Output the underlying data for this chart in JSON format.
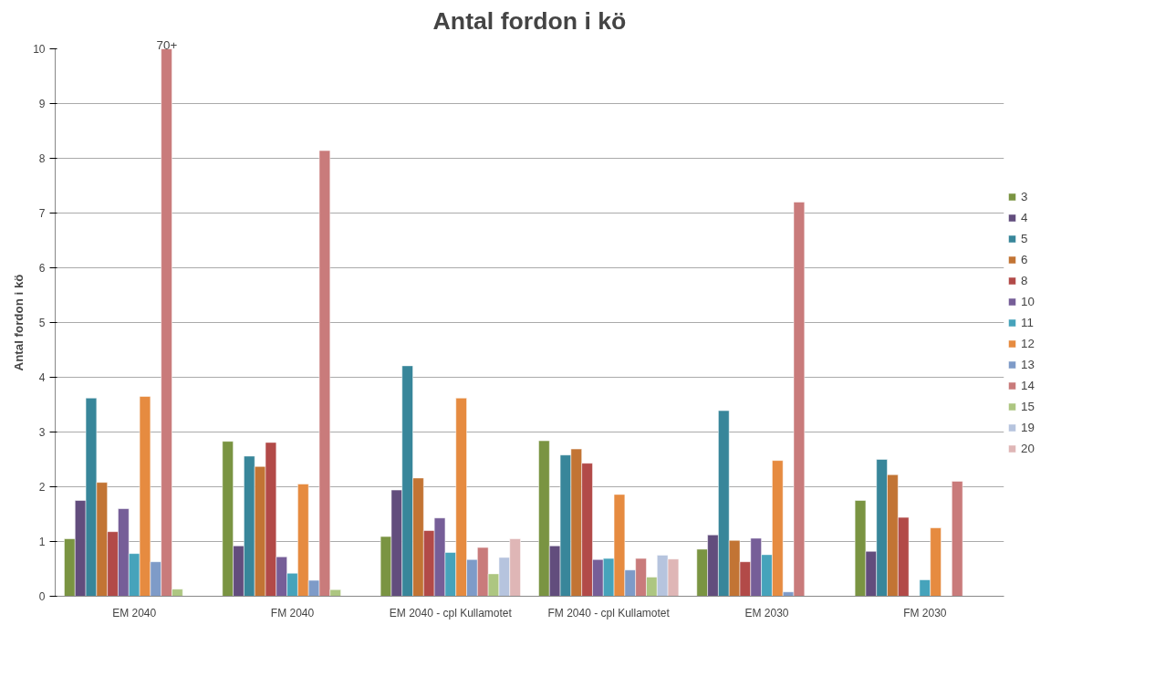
{
  "chart_data": {
    "type": "bar",
    "title": "Antal fordon i kö",
    "ylabel": "Antal fordon i kö",
    "categories": [
      "EM 2040",
      "FM 2040",
      "EM 2040 - cpl Kullamotet",
      "FM 2040 - cpl Kullamotet",
      "EM 2030",
      "FM 2030"
    ],
    "series": [
      {
        "name": "3",
        "color": "#7a9442",
        "values": [
          1.05,
          2.83,
          1.09,
          2.84,
          0.86,
          1.75
        ]
      },
      {
        "name": "4",
        "color": "#624d7d",
        "values": [
          1.75,
          0.92,
          1.94,
          0.92,
          1.12,
          0.82
        ]
      },
      {
        "name": "5",
        "color": "#38869a",
        "values": [
          3.62,
          2.56,
          4.21,
          2.58,
          3.39,
          2.5
        ]
      },
      {
        "name": "6",
        "color": "#c27434",
        "values": [
          2.08,
          2.37,
          2.16,
          2.69,
          1.02,
          2.22
        ]
      },
      {
        "name": "8",
        "color": "#b24a48",
        "values": [
          1.18,
          2.81,
          1.2,
          2.43,
          0.63,
          1.44
        ]
      },
      {
        "name": "10",
        "color": "#765e98",
        "values": [
          1.6,
          0.72,
          1.43,
          0.67,
          1.06,
          null
        ]
      },
      {
        "name": "11",
        "color": "#46a3bb",
        "values": [
          0.78,
          0.42,
          0.8,
          0.69,
          0.76,
          0.3
        ]
      },
      {
        "name": "12",
        "color": "#e68b40",
        "values": [
          3.65,
          2.05,
          3.62,
          1.86,
          2.48,
          1.25
        ]
      },
      {
        "name": "13",
        "color": "#7e9bc8",
        "values": [
          0.63,
          0.29,
          0.67,
          0.48,
          0.08,
          null
        ]
      },
      {
        "name": "14",
        "color": "#c97b7b",
        "values": [
          10,
          8.14,
          0.89,
          0.69,
          7.2,
          2.1
        ]
      },
      {
        "name": "15",
        "color": "#adc681",
        "values": [
          0.13,
          0.12,
          0.41,
          0.35,
          null,
          null
        ]
      },
      {
        "name": "19",
        "color": "#b6c4de",
        "values": [
          null,
          null,
          0.71,
          0.75,
          null,
          null
        ]
      },
      {
        "name": "20",
        "color": "#dfb6b6",
        "values": [
          null,
          null,
          1.05,
          0.68,
          null,
          null
        ]
      }
    ],
    "ylim": [
      0,
      10
    ],
    "yticks": [
      0,
      1,
      2,
      3,
      4,
      5,
      6,
      7,
      8,
      9,
      10
    ],
    "grid": "y",
    "legend": "right",
    "annotations": [
      "70+"
    ]
  }
}
